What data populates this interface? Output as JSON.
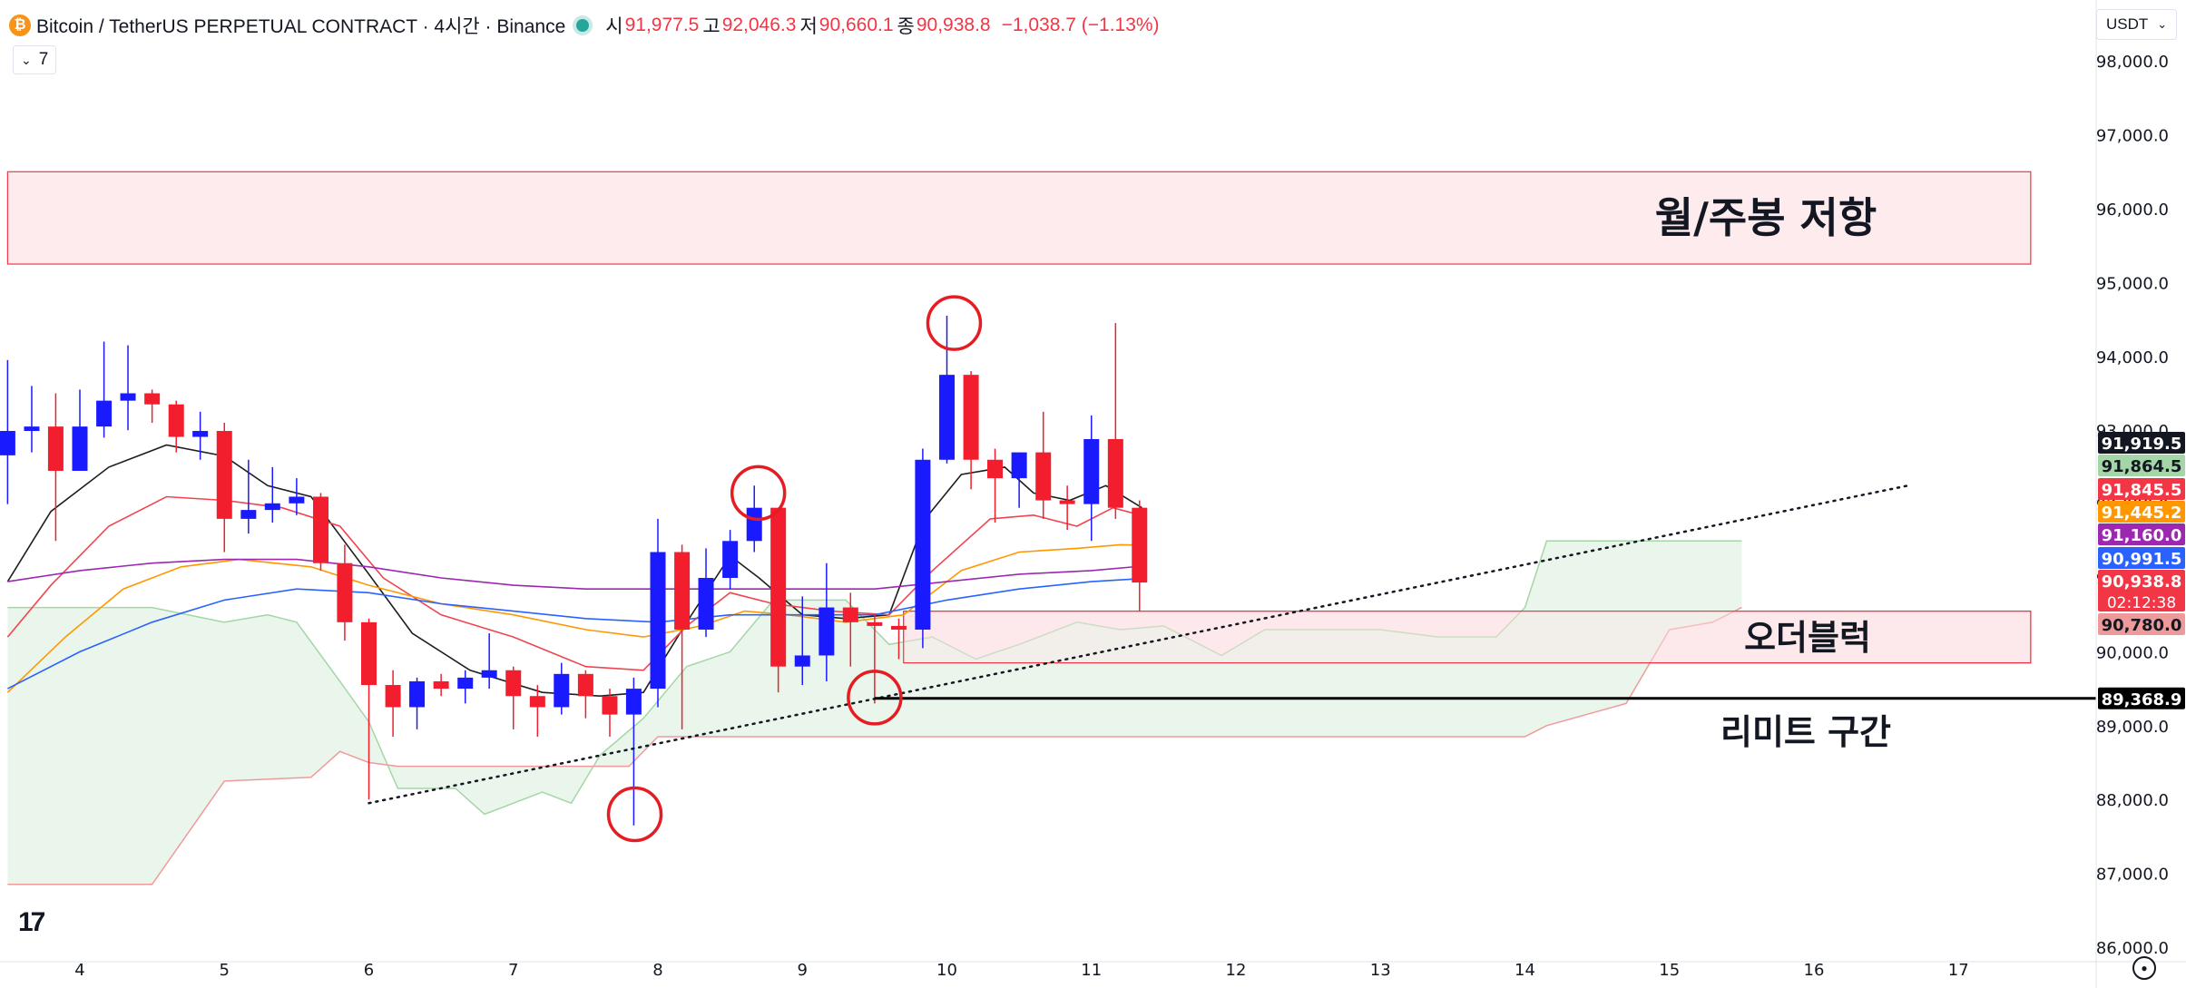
{
  "header": {
    "symbol": "Bitcoin / TetherUS PERPETUAL CONTRACT · 4시간 · Binance",
    "open_label": "시",
    "open": "91,977.5",
    "high_label": "고",
    "high": "92,046.3",
    "low_label": "저",
    "low": "90,660.1",
    "close_label": "종",
    "close": "90,938.8",
    "change": "−1,038.7 (−1.13%)"
  },
  "indicator_toggle": {
    "count": "7"
  },
  "currency": {
    "label": "USDT"
  },
  "colors": {
    "up": "#1a1aff",
    "down": "#f21e2d",
    "ema_black": "#1e1e1e",
    "ema_red": "#f2444f",
    "ema_orange": "#ff9800",
    "ema_blue": "#2962ff",
    "ema_purple": "#9c27b0",
    "cloud_green": "#e8f5e9",
    "cloud_red": "#fde7e9",
    "zone": "#fde8ea"
  },
  "chart_data": {
    "type": "candlestick",
    "title": "Bitcoin / TetherUS PERPETUAL CONTRACT · 4시간 · Binance",
    "ylim": [
      85800,
      98600
    ],
    "y_ticks": [
      86000,
      87000,
      88000,
      89000,
      90000,
      91000,
      92000,
      93000,
      94000,
      95000,
      96000,
      97000,
      98000
    ],
    "y_tick_labels": [
      "86,000.0",
      "87,000.0",
      "88,000.0",
      "89,000.0",
      "90,000.0",
      "91,000.0",
      "92,000.0",
      "93,000.0",
      "94,000.0",
      "95,000.0",
      "96,000.0",
      "97,000.0",
      "98,000.0"
    ],
    "x_range": [
      3.5,
      17.5
    ],
    "x_ticks": [
      4,
      5,
      6,
      7,
      8,
      9,
      10,
      11,
      12,
      13,
      14,
      15,
      16,
      17
    ],
    "x_tick_labels": [
      "4",
      "5",
      "6",
      "7",
      "8",
      "9",
      "10",
      "11",
      "12",
      "13",
      "14",
      "15",
      "16",
      "17"
    ],
    "candles": [
      {
        "t": 3.5,
        "o": 92660,
        "h": 93950,
        "l": 92000,
        "c": 92990
      },
      {
        "t": 3.667,
        "o": 92990,
        "h": 93600,
        "l": 92700,
        "c": 93050
      },
      {
        "t": 3.833,
        "o": 93050,
        "h": 93500,
        "l": 91500,
        "c": 92450
      },
      {
        "t": 4.0,
        "o": 92450,
        "h": 93550,
        "l": 92450,
        "c": 93050
      },
      {
        "t": 4.167,
        "o": 93050,
        "h": 94200,
        "l": 92900,
        "c": 93400
      },
      {
        "t": 4.333,
        "o": 93400,
        "h": 94150,
        "l": 93000,
        "c": 93500
      },
      {
        "t": 4.5,
        "o": 93500,
        "h": 93550,
        "l": 93100,
        "c": 93350
      },
      {
        "t": 4.667,
        "o": 93350,
        "h": 93400,
        "l": 92700,
        "c": 92910
      },
      {
        "t": 4.833,
        "o": 92910,
        "h": 93250,
        "l": 92600,
        "c": 92990
      },
      {
        "t": 5.0,
        "o": 92990,
        "h": 93100,
        "l": 91350,
        "c": 91800
      },
      {
        "t": 5.167,
        "o": 91800,
        "h": 92600,
        "l": 91600,
        "c": 91920
      },
      {
        "t": 5.333,
        "o": 91920,
        "h": 92500,
        "l": 91750,
        "c": 92010
      },
      {
        "t": 5.5,
        "o": 92010,
        "h": 92350,
        "l": 91850,
        "c": 92100
      },
      {
        "t": 5.667,
        "o": 92100,
        "h": 92150,
        "l": 91100,
        "c": 91200
      },
      {
        "t": 5.833,
        "o": 91200,
        "h": 91450,
        "l": 90150,
        "c": 90400
      },
      {
        "t": 6.0,
        "o": 90400,
        "h": 90450,
        "l": 88000,
        "c": 89550
      },
      {
        "t": 6.167,
        "o": 89550,
        "h": 89750,
        "l": 88850,
        "c": 89250
      },
      {
        "t": 6.333,
        "o": 89250,
        "h": 89650,
        "l": 88950,
        "c": 89600
      },
      {
        "t": 6.5,
        "o": 89600,
        "h": 89700,
        "l": 89400,
        "c": 89500
      },
      {
        "t": 6.667,
        "o": 89500,
        "h": 89750,
        "l": 89300,
        "c": 89650
      },
      {
        "t": 6.833,
        "o": 89650,
        "h": 90250,
        "l": 89500,
        "c": 89750
      },
      {
        "t": 7.0,
        "o": 89750,
        "h": 89800,
        "l": 88950,
        "c": 89400
      },
      {
        "t": 7.167,
        "o": 89400,
        "h": 89550,
        "l": 88850,
        "c": 89250
      },
      {
        "t": 7.333,
        "o": 89250,
        "h": 89850,
        "l": 89150,
        "c": 89700
      },
      {
        "t": 7.5,
        "o": 89700,
        "h": 89750,
        "l": 89100,
        "c": 89400
      },
      {
        "t": 7.667,
        "o": 89400,
        "h": 89500,
        "l": 88850,
        "c": 89150
      },
      {
        "t": 7.833,
        "o": 89150,
        "h": 89650,
        "l": 87650,
        "c": 89500
      },
      {
        "t": 8.0,
        "o": 89500,
        "h": 91800,
        "l": 89250,
        "c": 91350
      },
      {
        "t": 8.167,
        "o": 91350,
        "h": 91450,
        "l": 88950,
        "c": 90300
      },
      {
        "t": 8.333,
        "o": 90300,
        "h": 91400,
        "l": 90200,
        "c": 91000
      },
      {
        "t": 8.5,
        "o": 91000,
        "h": 91650,
        "l": 90850,
        "c": 91500
      },
      {
        "t": 8.667,
        "o": 91500,
        "h": 92250,
        "l": 91350,
        "c": 91950
      },
      {
        "t": 8.833,
        "o": 91950,
        "h": 91950,
        "l": 89450,
        "c": 89800
      },
      {
        "t": 9.0,
        "o": 89800,
        "h": 90750,
        "l": 89550,
        "c": 89950
      },
      {
        "t": 9.167,
        "o": 89950,
        "h": 91200,
        "l": 89600,
        "c": 90600
      },
      {
        "t": 9.333,
        "o": 90600,
        "h": 90800,
        "l": 89800,
        "c": 90400
      },
      {
        "t": 9.5,
        "o": 90400,
        "h": 90500,
        "l": 89300,
        "c": 90350
      },
      {
        "t": 9.667,
        "o": 90350,
        "h": 90450,
        "l": 89900,
        "c": 90300
      },
      {
        "t": 9.833,
        "o": 90300,
        "h": 92750,
        "l": 90050,
        "c": 92600
      },
      {
        "t": 10.0,
        "o": 92600,
        "h": 94550,
        "l": 92550,
        "c": 93750
      },
      {
        "t": 10.167,
        "o": 93750,
        "h": 93800,
        "l": 92200,
        "c": 92600
      },
      {
        "t": 10.333,
        "o": 92600,
        "h": 92750,
        "l": 91750,
        "c": 92350
      },
      {
        "t": 10.5,
        "o": 92350,
        "h": 92700,
        "l": 91950,
        "c": 92700
      },
      {
        "t": 10.667,
        "o": 92700,
        "h": 93250,
        "l": 91800,
        "c": 92050
      },
      {
        "t": 10.833,
        "o": 92050,
        "h": 92250,
        "l": 91650,
        "c": 92000
      },
      {
        "t": 11.0,
        "o": 92000,
        "h": 93200,
        "l": 91500,
        "c": 92880
      },
      {
        "t": 11.167,
        "o": 92880,
        "h": 94450,
        "l": 91800,
        "c": 91950
      },
      {
        "t": 11.333,
        "o": 91950,
        "h": 92050,
        "l": 90550,
        "c": 90938
      }
    ],
    "moving_averages": [
      {
        "name": "EMA (black)",
        "color": "#1e1e1e",
        "points": [
          [
            3.5,
            90950
          ],
          [
            3.8,
            91900
          ],
          [
            4.2,
            92500
          ],
          [
            4.6,
            92800
          ],
          [
            5.0,
            92650
          ],
          [
            5.3,
            92250
          ],
          [
            5.6,
            92100
          ],
          [
            6.0,
            91050
          ],
          [
            6.3,
            90250
          ],
          [
            6.7,
            89750
          ],
          [
            7.2,
            89450
          ],
          [
            7.6,
            89400
          ],
          [
            7.9,
            89450
          ],
          [
            8.2,
            90400
          ],
          [
            8.5,
            91300
          ],
          [
            8.7,
            91000
          ],
          [
            9.0,
            90500
          ],
          [
            9.3,
            90450
          ],
          [
            9.6,
            90500
          ],
          [
            9.85,
            91800
          ],
          [
            10.1,
            92400
          ],
          [
            10.4,
            92500
          ],
          [
            10.6,
            92150
          ],
          [
            10.85,
            92050
          ],
          [
            11.1,
            92250
          ],
          [
            11.35,
            91950
          ]
        ]
      },
      {
        "name": "EMA (red)",
        "color": "#f2444f",
        "points": [
          [
            3.5,
            90200
          ],
          [
            3.8,
            90900
          ],
          [
            4.2,
            91700
          ],
          [
            4.6,
            92100
          ],
          [
            5.0,
            92050
          ],
          [
            5.4,
            91950
          ],
          [
            5.8,
            91700
          ],
          [
            6.1,
            91000
          ],
          [
            6.5,
            90500
          ],
          [
            7.0,
            90200
          ],
          [
            7.5,
            89800
          ],
          [
            7.9,
            89750
          ],
          [
            8.2,
            90350
          ],
          [
            8.5,
            90800
          ],
          [
            8.8,
            90650
          ],
          [
            9.2,
            90550
          ],
          [
            9.6,
            90500
          ],
          [
            9.9,
            91100
          ],
          [
            10.3,
            91800
          ],
          [
            10.6,
            91850
          ],
          [
            10.9,
            91700
          ],
          [
            11.15,
            91950
          ],
          [
            11.35,
            91845
          ]
        ]
      },
      {
        "name": "EMA (orange)",
        "color": "#ff9800",
        "points": [
          [
            3.5,
            89450
          ],
          [
            3.9,
            90200
          ],
          [
            4.3,
            90850
          ],
          [
            4.7,
            91150
          ],
          [
            5.1,
            91250
          ],
          [
            5.6,
            91150
          ],
          [
            6.0,
            90900
          ],
          [
            6.5,
            90650
          ],
          [
            7.0,
            90500
          ],
          [
            7.5,
            90300
          ],
          [
            7.9,
            90200
          ],
          [
            8.3,
            90350
          ],
          [
            8.6,
            90550
          ],
          [
            8.9,
            90500
          ],
          [
            9.3,
            90400
          ],
          [
            9.7,
            90500
          ],
          [
            10.1,
            91100
          ],
          [
            10.5,
            91350
          ],
          [
            10.9,
            91400
          ],
          [
            11.2,
            91450
          ],
          [
            11.35,
            91445
          ]
        ]
      },
      {
        "name": "EMA (purple)",
        "color": "#9c27b0",
        "points": [
          [
            3.5,
            90950
          ],
          [
            4.0,
            91100
          ],
          [
            4.5,
            91200
          ],
          [
            5.0,
            91250
          ],
          [
            5.5,
            91250
          ],
          [
            6.0,
            91150
          ],
          [
            6.5,
            91000
          ],
          [
            7.0,
            90900
          ],
          [
            7.5,
            90850
          ],
          [
            8.0,
            90850
          ],
          [
            8.5,
            90850
          ],
          [
            9.0,
            90850
          ],
          [
            9.5,
            90850
          ],
          [
            10.0,
            90950
          ],
          [
            10.5,
            91050
          ],
          [
            11.0,
            91100
          ],
          [
            11.35,
            91160
          ]
        ]
      },
      {
        "name": "EMA (blue)",
        "color": "#2962ff",
        "points": [
          [
            3.5,
            89500
          ],
          [
            4.0,
            90000
          ],
          [
            4.5,
            90400
          ],
          [
            5.0,
            90700
          ],
          [
            5.5,
            90850
          ],
          [
            6.0,
            90800
          ],
          [
            6.5,
            90650
          ],
          [
            7.0,
            90550
          ],
          [
            7.5,
            90450
          ],
          [
            8.0,
            90400
          ],
          [
            8.5,
            90500
          ],
          [
            9.0,
            90500
          ],
          [
            9.5,
            90500
          ],
          [
            10.0,
            90700
          ],
          [
            10.5,
            90850
          ],
          [
            11.0,
            90950
          ],
          [
            11.35,
            90991
          ]
        ]
      }
    ],
    "cloud": {
      "span_a": [
        [
          3.5,
          90600
        ],
        [
          4.5,
          90600
        ],
        [
          5.0,
          90400
        ],
        [
          5.3,
          90500
        ],
        [
          5.5,
          90400
        ],
        [
          5.8,
          89600
        ],
        [
          6.0,
          89050
        ],
        [
          6.2,
          88150
        ],
        [
          6.6,
          88150
        ],
        [
          6.8,
          87800
        ],
        [
          7.2,
          88100
        ],
        [
          7.4,
          87950
        ],
        [
          7.6,
          88600
        ],
        [
          7.9,
          89100
        ],
        [
          8.2,
          89800
        ],
        [
          8.5,
          90000
        ],
        [
          8.8,
          90700
        ],
        [
          9.3,
          90700
        ],
        [
          9.6,
          90100
        ],
        [
          9.9,
          90200
        ],
        [
          10.2,
          89900
        ],
        [
          10.5,
          90100
        ],
        [
          10.9,
          90400
        ],
        [
          11.2,
          90300
        ],
        [
          11.5,
          90350
        ],
        [
          11.9,
          89950
        ],
        [
          12.2,
          90300
        ],
        [
          13.0,
          90300
        ],
        [
          13.4,
          90200
        ],
        [
          13.8,
          90200
        ],
        [
          14.0,
          90600
        ],
        [
          14.15,
          91500
        ],
        [
          15.0,
          91500
        ],
        [
          15.5,
          91500
        ]
      ],
      "span_b": [
        [
          3.5,
          86850
        ],
        [
          4.5,
          86850
        ],
        [
          5.0,
          88250
        ],
        [
          5.6,
          88300
        ],
        [
          5.8,
          88650
        ],
        [
          6.0,
          88500
        ],
        [
          6.2,
          88450
        ],
        [
          7.8,
          88450
        ],
        [
          8.0,
          88850
        ],
        [
          9.0,
          88850
        ],
        [
          9.6,
          88850
        ],
        [
          10.5,
          88850
        ],
        [
          12.5,
          88850
        ],
        [
          14.0,
          88850
        ],
        [
          14.15,
          89000
        ],
        [
          14.7,
          89300
        ],
        [
          15.0,
          90300
        ],
        [
          15.3,
          90400
        ],
        [
          15.5,
          90600
        ]
      ]
    },
    "zones": [
      {
        "label": "월/주봉 저항",
        "y0": 95250,
        "y1": 96500,
        "x0": 3.5,
        "x1": 17.5
      },
      {
        "label": "오더블럭",
        "y0": 89850,
        "y1": 90550,
        "x0": 9.7,
        "x1": 17.5
      }
    ],
    "limit_line": {
      "label": "리미트 구간",
      "y": 89368.9,
      "x0": 9.5,
      "x1": 17.5,
      "price_label": "89,368.9"
    },
    "trendline": {
      "x0": 6.0,
      "y0": 87950,
      "x1": 16.65,
      "y1": 92250
    },
    "highlight_circles": [
      {
        "x": 7.84,
        "y": 87800
      },
      {
        "x": 8.695,
        "y": 92150
      },
      {
        "x": 10.05,
        "y": 94450
      },
      {
        "x": 9.5,
        "y": 89380
      }
    ],
    "price_labels": [
      {
        "value": 91919.5,
        "text": "91,919.5",
        "color": "#131722"
      },
      {
        "value": 91864.5,
        "text": "91,864.5",
        "color": "#a5d6a7",
        "text_color": "#131722"
      },
      {
        "value": 91845.5,
        "text": "91,845.5",
        "color": "#f23645"
      },
      {
        "value": 91445.2,
        "text": "91,445.2",
        "color": "#ff9800"
      },
      {
        "value": 91160.0,
        "text": "91,160.0",
        "color": "#9c27b0"
      },
      {
        "value": 90991.5,
        "text": "90,991.5",
        "color": "#2962ff"
      },
      {
        "value": 90938.8,
        "text": "90,938.8",
        "color": "#f23645",
        "sub": "02:12:38"
      },
      {
        "value": 90780.0,
        "text": "90,780.0",
        "color": "#ef9a9a",
        "text_color": "#131722"
      }
    ]
  }
}
